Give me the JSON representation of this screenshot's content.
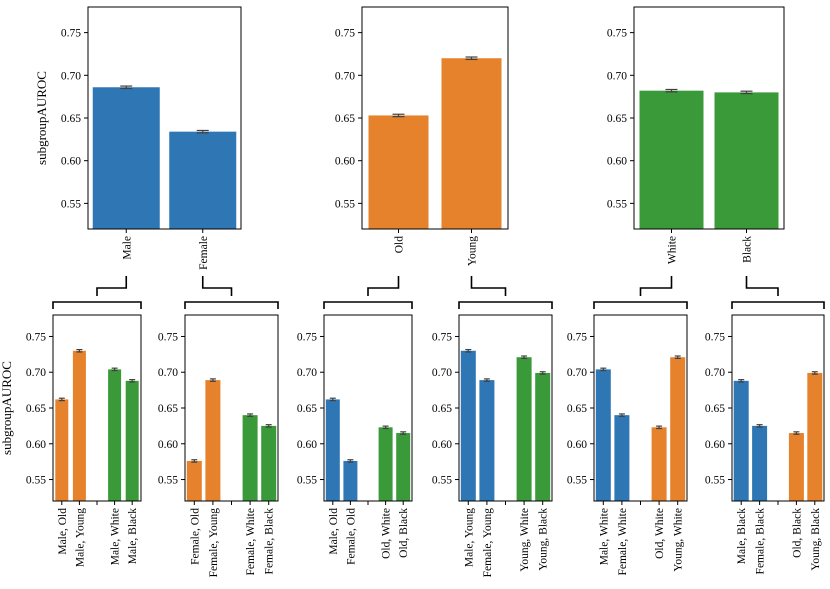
{
  "colors": {
    "blue": "#2f77b4",
    "orange": "#e6822c",
    "green": "#3a9a3a",
    "err": "#404040"
  },
  "chart_data": [
    {
      "id": "top-sex",
      "type": "bar",
      "ylabel": "subgroupAUROC",
      "ylim": [
        0.52,
        0.78
      ],
      "yticks": [
        "0.55",
        "0.60",
        "0.65",
        "0.70",
        "0.75"
      ],
      "categories": [
        "Male",
        "Female"
      ],
      "values": [
        0.686,
        0.634
      ],
      "colors": [
        "blue",
        "blue"
      ]
    },
    {
      "id": "top-age",
      "type": "bar",
      "ylabel": "",
      "ylim": [
        0.52,
        0.78
      ],
      "yticks": [
        "0.55",
        "0.60",
        "0.65",
        "0.70",
        "0.75"
      ],
      "categories": [
        "Old",
        "Young"
      ],
      "values": [
        0.653,
        0.72
      ],
      "colors": [
        "orange",
        "orange"
      ]
    },
    {
      "id": "top-race",
      "type": "bar",
      "ylabel": "",
      "ylim": [
        0.52,
        0.78
      ],
      "yticks": [
        "0.55",
        "0.60",
        "0.65",
        "0.70",
        "0.75"
      ],
      "categories": [
        "White",
        "Black"
      ],
      "values": [
        0.682,
        0.68
      ],
      "colors": [
        "green",
        "green"
      ]
    },
    {
      "id": "male",
      "type": "bar",
      "ylabel": "subgroupAUROC",
      "ylim": [
        0.52,
        0.78
      ],
      "yticks": [
        "0.55",
        "0.60",
        "0.65",
        "0.70",
        "0.75"
      ],
      "categories": [
        "Male, Old",
        "Male, Young",
        "",
        "Male, White",
        "Male, Black"
      ],
      "values": [
        0.662,
        0.73,
        null,
        0.704,
        0.688
      ],
      "colors": [
        "orange",
        "orange",
        "",
        "green",
        "green"
      ]
    },
    {
      "id": "female",
      "type": "bar",
      "ylabel": "",
      "ylim": [
        0.52,
        0.78
      ],
      "yticks": [
        "0.55",
        "0.60",
        "0.65",
        "0.70",
        "0.75"
      ],
      "categories": [
        "Female, Old",
        "Female, Young",
        "",
        "Female, White",
        "Female, Black"
      ],
      "values": [
        0.576,
        0.689,
        null,
        0.64,
        0.625
      ],
      "colors": [
        "orange",
        "orange",
        "",
        "green",
        "green"
      ]
    },
    {
      "id": "old",
      "type": "bar",
      "ylabel": "",
      "ylim": [
        0.52,
        0.78
      ],
      "yticks": [
        "0.55",
        "0.60",
        "0.65",
        "0.70",
        "0.75"
      ],
      "categories": [
        "Male, Old",
        "Female, Old",
        "",
        "Old, White",
        "Old, Black"
      ],
      "values": [
        0.662,
        0.576,
        null,
        0.623,
        0.615
      ],
      "colors": [
        "blue",
        "blue",
        "",
        "green",
        "green"
      ]
    },
    {
      "id": "young",
      "type": "bar",
      "ylabel": "",
      "ylim": [
        0.52,
        0.78
      ],
      "yticks": [
        "0.55",
        "0.60",
        "0.65",
        "0.70",
        "0.75"
      ],
      "categories": [
        "Male, Young",
        "Female, Young",
        "",
        "Young, White",
        "Young, Black"
      ],
      "values": [
        0.73,
        0.689,
        null,
        0.721,
        0.699
      ],
      "colors": [
        "blue",
        "blue",
        "",
        "green",
        "green"
      ]
    },
    {
      "id": "white",
      "type": "bar",
      "ylabel": "",
      "ylim": [
        0.52,
        0.78
      ],
      "yticks": [
        "0.55",
        "0.60",
        "0.65",
        "0.70",
        "0.75"
      ],
      "categories": [
        "Male, White",
        "Female, White",
        "",
        "Old, White",
        "Young, White"
      ],
      "values": [
        0.704,
        0.64,
        null,
        0.623,
        0.721
      ],
      "colors": [
        "blue",
        "blue",
        "",
        "orange",
        "orange"
      ]
    },
    {
      "id": "black",
      "type": "bar",
      "ylabel": "",
      "ylim": [
        0.52,
        0.78
      ],
      "yticks": [
        "0.55",
        "0.60",
        "0.65",
        "0.70",
        "0.75"
      ],
      "categories": [
        "Male, Black",
        "Female, Black",
        "",
        "Old, Black",
        "Young, Black"
      ],
      "values": [
        0.688,
        0.625,
        null,
        0.615,
        0.699
      ],
      "colors": [
        "blue",
        "blue",
        "",
        "orange",
        "orange"
      ]
    }
  ]
}
